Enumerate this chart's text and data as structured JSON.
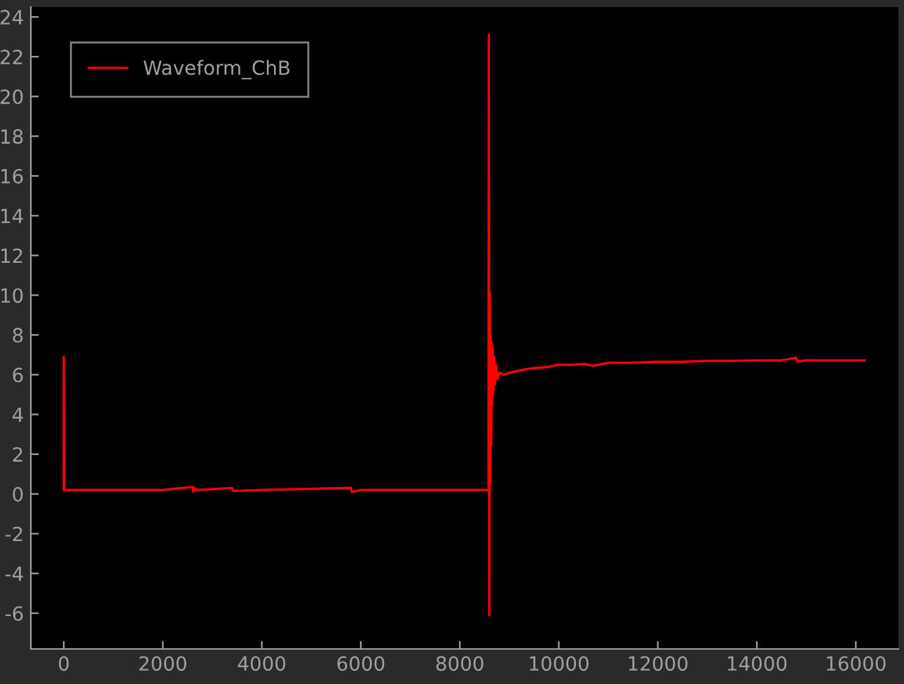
{
  "chart_data": {
    "type": "line",
    "x": [
      0,
      0,
      10,
      1000,
      2000,
      2600,
      2620,
      2640,
      2700,
      3400,
      3420,
      4000,
      5800,
      5820,
      6000,
      7000,
      8000,
      8570,
      8580,
      8585,
      8595,
      8605,
      8615,
      8625,
      8635,
      8645,
      8655,
      8665,
      8675,
      8690,
      8710,
      8730,
      8760,
      8800,
      8900,
      9000,
      9200,
      9400,
      9600,
      9800,
      10000,
      10300,
      10500,
      10700,
      11000,
      11500,
      12000,
      12500,
      13000,
      13500,
      14000,
      14500,
      14800,
      14820,
      15000,
      15500,
      16000,
      16180
    ],
    "series": [
      {
        "name": "Waveform_ChB",
        "color": "#ff0000",
        "values": [
          0.2,
          6.9,
          0.2,
          0.2,
          0.2,
          0.35,
          0.1,
          0.3,
          0.2,
          0.3,
          0.15,
          0.2,
          0.3,
          0.1,
          0.2,
          0.2,
          0.2,
          0.2,
          0.2,
          23.1,
          -6.1,
          10.1,
          0.5,
          8.0,
          2.5,
          7.6,
          4.5,
          7.3,
          5.0,
          6.9,
          5.5,
          6.5,
          5.8,
          6.1,
          6.0,
          6.1,
          6.2,
          6.3,
          6.35,
          6.4,
          6.5,
          6.5,
          6.55,
          6.45,
          6.6,
          6.6,
          6.65,
          6.65,
          6.7,
          6.7,
          6.72,
          6.72,
          6.85,
          6.65,
          6.72,
          6.72,
          6.72,
          6.72
        ]
      }
    ],
    "xlim": [
      -666,
      16860
    ],
    "ylim": [
      -7.8,
      24.5
    ],
    "xticks": [
      0,
      2000,
      4000,
      6000,
      8000,
      10000,
      12000,
      14000,
      16000
    ],
    "yticks": [
      -6,
      -4,
      -2,
      0,
      2,
      4,
      6,
      8,
      10,
      12,
      14,
      16,
      18,
      20,
      22,
      24
    ],
    "grid": false,
    "legend": "top left",
    "marker": "none",
    "line_style": "solid"
  }
}
